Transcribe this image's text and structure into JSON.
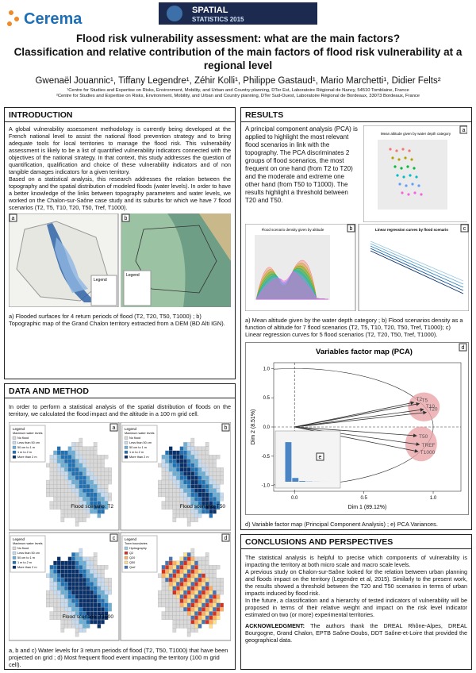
{
  "header": {
    "logo": "Cerema",
    "banner": [
      "SPATIAL",
      "STATISTICS 2015"
    ],
    "title": [
      "Flood risk vulnerability assessment: what are the main factors?",
      "Classification and relative contribution of the main factors of flood risk vulnerability at a regional level"
    ],
    "authors": "Gwenaël Jouannic¹, Tiffany Legendre¹, Zéhir Kolli¹, Philippe Gastaud¹, Mario Marchetti¹, Didier Felts²",
    "affiliations": [
      "¹Centre for Studies and Expertise on Risks, Environment, Mobility, and Urban and Country planning, DTer Est, Laboratoire Régional de Nancy, 54510 Tomblaine, France",
      "²Centre for Studies and Expertise on Risks, Environment, Mobility, and Urban and Country planning, DTer Sud-Ouest, Laboratoire Régional de Bordeaux, 33073 Bordeaux, France"
    ]
  },
  "introduction": {
    "heading": "INTRODUCTION",
    "paragraphs": [
      "A global vulnerability assessment methodology is currently being developed at the French national level to assist the national flood prevention strategy and to bring adequate tools for local territories to manage the flood risk. This vulnerability assessment is likely to be a list of quantified vulnerability indicators connected with the objectives of the national strategy. In that context, this study addresses the question of quantification, qualification and choice of these vulnerability indicators and of non tangible damages indicators for a given territory.",
      "Based on a statistical analysis, this research addresses the relation between the topography and the spatial distribution of modeled floods (water levels). In order to have a better knowledge of the links between topography parameters and water levels, we worked on the Chalon-sur-Saône case study and its suburbs for which we have 7 flood scenarios (T2, T5, T10, T20, T50, Tref, T1000)."
    ],
    "panel_labels": [
      "a",
      "b"
    ],
    "legend_title": "Legend",
    "caption": "a) Flooded surfaces for 4 return periods of flood (T2, T20, T50, T1000) ; b) Topographic map of the Grand Chalon territory extracted from a DEM (BD Alti IGN)."
  },
  "data_method": {
    "heading": "DATA AND METHOD",
    "paragraph": "In order to perform a statistical analysis of the spatial distribution of floods on the territory, we calculated the flood impact and the altitude in a 100 m grid cell.",
    "panel_labels": [
      "a",
      "b",
      "c",
      "d"
    ],
    "legend_title": "Legend",
    "legend": [
      "Maximum water levels",
      "No flood",
      "Less than 50 cm",
      "50 cm to 1 m",
      "1 m to 2 m",
      "More than 2 m"
    ],
    "legend_d": [
      "Town boundaries",
      "Hydrography",
      "Q2",
      "Q20",
      "Q50",
      "Qref"
    ],
    "scenarios": [
      "Flood scenario: T2",
      "Flood scenario: T50",
      "Flood scenario: T1000"
    ],
    "caption": "a, b and c) Water levels for 3 return periods of flood (T2, T50, T1000) that have been projected on grid ; d) Most frequent flood event impacting the territory (100 m grid cell)."
  },
  "results": {
    "heading": "RESULTS",
    "paragraph": "A principal component analysis (PCA) is applied to highlight the most relevant flood scenarios in link with the topography. The PCA discriminates 2 groups of flood scenarios, the most frequent on one hand (from T2 to T20) and the moderate and extreme one other hand (from T50 to T1000). The results highlight a threshold between T20 and T50.",
    "panel_labels": [
      "a",
      "b",
      "c",
      "d",
      "e"
    ],
    "figure_titles": [
      "Mean altitude given by water depth category",
      "Flood scenario density given by altitude",
      "Linear regression curves by flood scenario"
    ],
    "caption": "a) Mean altitude given by the water depth category ; b) Flood scenarios density as a function of altitude for 7 flood scenarios (T2, T5, T10, T20, T50, Tref, T1000); c) Linear regression curves for 5 flood scenarios (T2, T20, T50, Tref, T1000).",
    "caption2": "d) Variable factor map (Principal Component Analysis) ; e) PCA Variances."
  },
  "conclusions": {
    "heading": "CONCLUSIONS AND PERSPECTIVES",
    "paragraphs": [
      "The statistical analysis is helpful to precise which components of vulnerability is impacting the territory at both micro scale and macro scale levels.",
      "A previous study on Chalon-sur-Saône looked for the relation between urban planning and floods impact on the territory (Legendre et al, 2015). Similarly to the present work, the results showed a threshold between the T20 and T50 scenarios in terms of urban impacts induced by flood risk.",
      "In the future, a classification and a hierarchy of tested indicators of vulnerability will be proposed in terms of their relative weight and impact on the risk level indicator estimated on two (or more) experimental territories."
    ],
    "ack_label": "ACKNOWLEDGMENT:",
    "ack_text": "The authors thank the DREAL Rhône-Alpes, DREAL Bourgogne, Grand Chalon, EPTB Saône-Doubs, DDT Saône-et-Loire that provided the geographical data."
  },
  "chart_data": [
    {
      "type": "scatter",
      "title": "Variables factor map (PCA)",
      "xlabel": "Dim 1 (89.12%)",
      "ylabel": "Dim 2 (8.51%)",
      "labels": [
        "T2",
        "T5",
        "T10",
        "T20",
        "T50",
        "TREF",
        "T1000"
      ],
      "x": [
        0.86,
        0.9,
        0.93,
        0.95,
        0.88,
        0.9,
        0.89
      ],
      "y": [
        0.42,
        0.4,
        0.3,
        0.25,
        -0.15,
        -0.3,
        -0.42
      ],
      "color": "#333333",
      "xlim": [
        -0.15,
        1.2
      ],
      "xticks": [
        {
          "value": 0,
          "label": "0.0"
        },
        0.5,
        {
          "value": 1,
          "label": "1.0"
        }
      ],
      "ylim": [
        -1.1,
        1.1
      ],
      "yticks": [
        {
          "value": -1,
          "label": "-1.0"
        },
        -0.5,
        {
          "value": 0,
          "label": "0.0"
        },
        0.5,
        {
          "value": 1,
          "label": "1.0"
        }
      ]
    },
    {
      "type": "bar",
      "values": [
        89.12,
        8.51,
        1.6,
        0.5,
        0.2,
        0.05,
        0.02
      ],
      "color": "#4a86c5",
      "ylim": [
        0,
        100
      ]
    }
  ]
}
